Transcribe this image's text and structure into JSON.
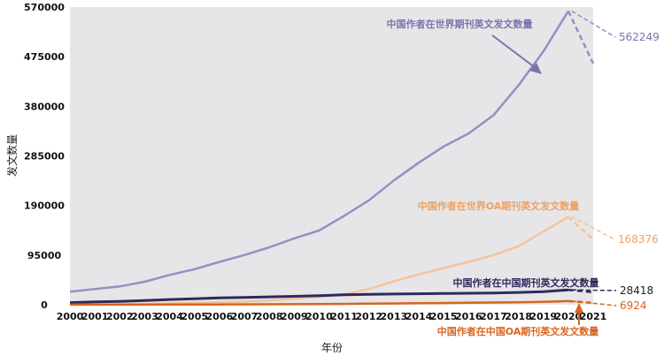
{
  "chart_data": {
    "type": "line",
    "xlabel": "年份",
    "ylabel": "发文数量",
    "ylim": [
      0,
      570000
    ],
    "yticks": [
      0,
      95000,
      190000,
      285000,
      380000,
      475000,
      570000
    ],
    "x": [
      "2000",
      "2001",
      "2002",
      "2003",
      "2004",
      "2005",
      "2006",
      "2007",
      "2008",
      "2009",
      "2010",
      "2011",
      "2012",
      "2013",
      "2014",
      "2015",
      "2016",
      "2017",
      "2018",
      "2019",
      "2020",
      "2021"
    ],
    "grid": false,
    "plot_background": "#e6e6e8",
    "series": [
      {
        "name": "中国作者在世界期刊英文发文数量",
        "color": "#9b8cc4",
        "label_color": "#8070b0",
        "values": [
          25000,
          30000,
          35000,
          44000,
          57000,
          68000,
          82000,
          95000,
          110000,
          127000,
          142000,
          170000,
          200000,
          238000,
          272000,
          303000,
          328000,
          363000,
          420000,
          485000,
          562249,
          462000
        ],
        "end_label": "562249"
      },
      {
        "name": "中国作者在世界OA期刊英文发文数量",
        "color": "#f5c49a",
        "label_color": "#f0a060",
        "values": [
          500,
          800,
          1200,
          1800,
          2500,
          3500,
          4500,
          6000,
          8000,
          11000,
          15000,
          20000,
          30000,
          45000,
          58000,
          70000,
          82000,
          95000,
          112000,
          140000,
          168376,
          125000
        ],
        "end_label": "168376"
      },
      {
        "name": "中国作者在中国期刊英文发文数量",
        "color": "#2f2a5a",
        "label_color": "#2f2a5a",
        "values": [
          4000,
          5500,
          6500,
          8000,
          10000,
          11500,
          13000,
          14000,
          15000,
          16000,
          17500,
          19000,
          20000,
          20500,
          21000,
          21500,
          22000,
          22500,
          23500,
          25000,
          28418,
          24000
        ],
        "end_label": "28418"
      },
      {
        "name": "中国作者在中国OA期刊英文发文数量",
        "color": "#d9641e",
        "label_color": "#d9641e",
        "values": [
          100,
          150,
          200,
          250,
          300,
          400,
          500,
          600,
          800,
          1000,
          1300,
          1600,
          2000,
          2400,
          2800,
          3200,
          3700,
          4200,
          4800,
          5600,
          6924,
          3500
        ],
        "end_label": "6924"
      }
    ]
  }
}
